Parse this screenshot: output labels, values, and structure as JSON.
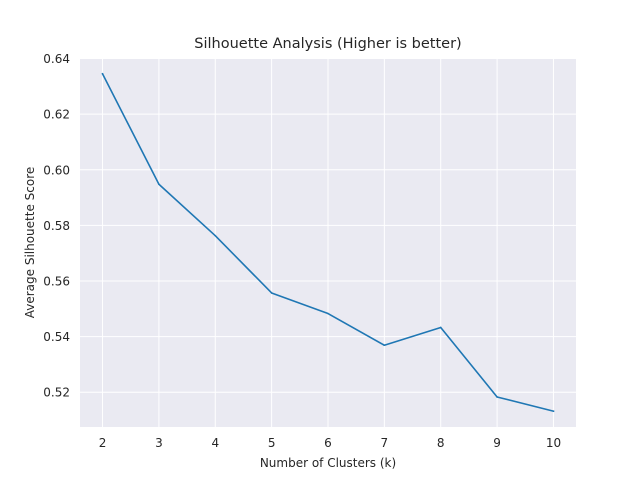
{
  "chart_data": {
    "type": "line",
    "title": "Silhouette Analysis (Higher is better)",
    "xlabel": "Number of Clusters (k)",
    "ylabel": "Average Silhouette Score",
    "x": [
      2,
      3,
      4,
      5,
      6,
      7,
      8,
      9,
      10
    ],
    "series": [
      {
        "values": [
          0.6345,
          0.5948,
          0.5763,
          0.5557,
          0.5483,
          0.5369,
          0.5433,
          0.5183,
          0.5132
        ],
        "color": "#1f77b4"
      }
    ],
    "xticks": [
      2,
      3,
      4,
      5,
      6,
      7,
      8,
      9,
      10
    ],
    "yticks": [
      0.52,
      0.54,
      0.56,
      0.58,
      0.6,
      0.62,
      0.64
    ],
    "ytick_labels": [
      "0.52",
      "0.54",
      "0.56",
      "0.58",
      "0.60",
      "0.62",
      "0.64"
    ],
    "xlim": [
      1.6,
      10.4
    ],
    "ylim": [
      0.5075,
      0.6402
    ],
    "grid": true,
    "background": "#eaeaf2",
    "grid_color": "#ffffff"
  }
}
